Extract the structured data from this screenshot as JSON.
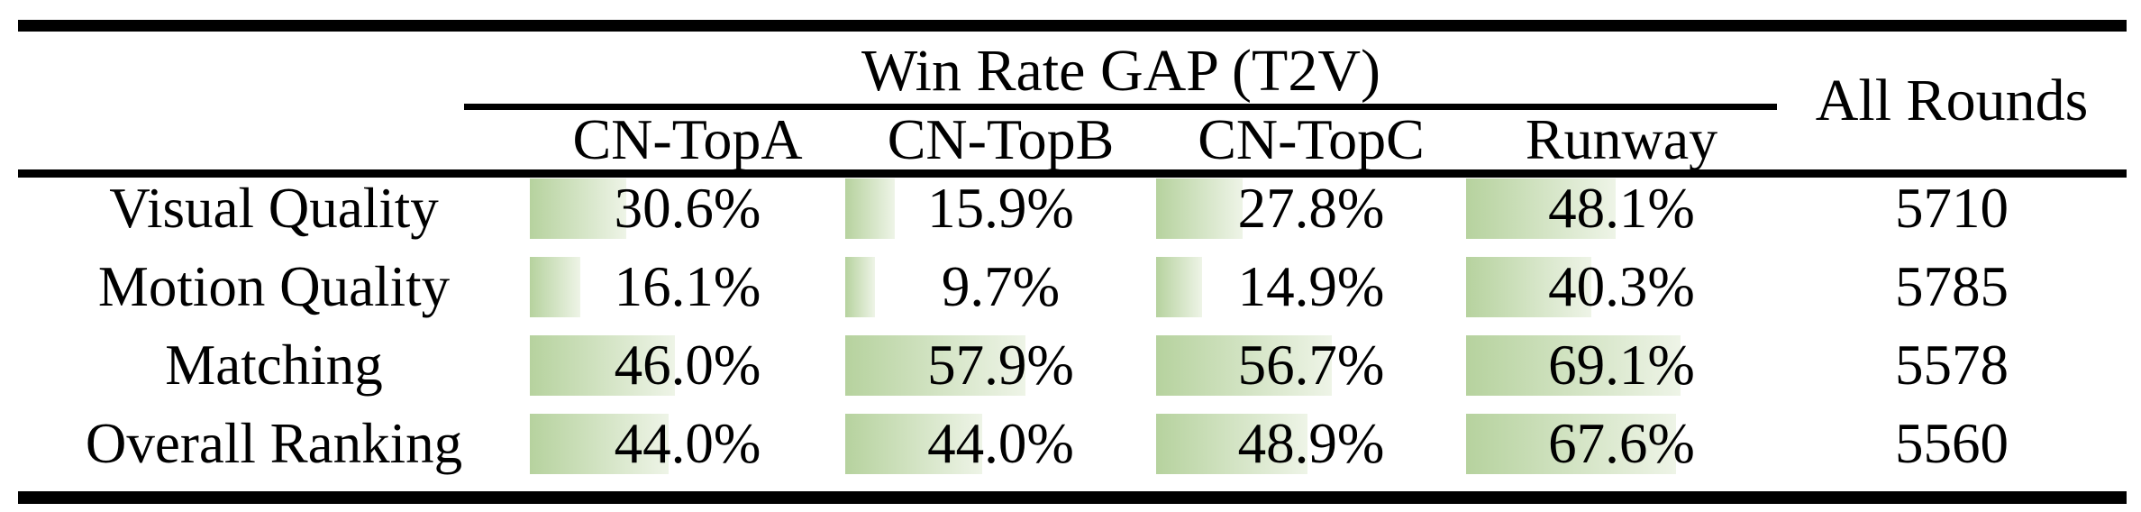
{
  "table": {
    "title": "Win Rate GAP (T2V)",
    "all_rounds_header": "All Rounds",
    "columns": [
      "CN-TopA",
      "CN-TopB",
      "CN-TopC",
      "Runway"
    ],
    "rows": [
      {
        "label": "Visual Quality",
        "values": [
          30.6,
          15.9,
          27.8,
          48.1
        ],
        "display": [
          "30.6%",
          "15.9%",
          "27.8%",
          "48.1%"
        ],
        "all_rounds": "5710"
      },
      {
        "label": "Motion Quality",
        "values": [
          16.1,
          9.7,
          14.9,
          40.3
        ],
        "display": [
          "16.1%",
          "9.7%",
          "14.9%",
          "40.3%"
        ],
        "all_rounds": "5785"
      },
      {
        "label": "Matching",
        "values": [
          46.0,
          57.9,
          56.7,
          69.1
        ],
        "display": [
          "46.0%",
          "57.9%",
          "56.7%",
          "69.1%"
        ],
        "all_rounds": "5578"
      },
      {
        "label": "Overall Ranking",
        "values": [
          44.0,
          44.0,
          48.9,
          67.6
        ],
        "display": [
          "44.0%",
          "44.0%",
          "48.9%",
          "67.6%"
        ],
        "all_rounds": "5560"
      }
    ],
    "bar_color_start": "#b6d29e",
    "bar_color_end": "#eef4e7",
    "rule_color": "#000000"
  },
  "chart_data": {
    "type": "table",
    "title": "Win Rate GAP (T2V)",
    "categories": [
      "CN-TopA",
      "CN-TopB",
      "CN-TopC",
      "Runway",
      "All Rounds"
    ],
    "series": [
      {
        "name": "Visual Quality",
        "values": [
          30.6,
          15.9,
          27.8,
          48.1
        ],
        "all_rounds": 5710
      },
      {
        "name": "Motion Quality",
        "values": [
          16.1,
          9.7,
          14.9,
          40.3
        ],
        "all_rounds": 5785
      },
      {
        "name": "Matching",
        "values": [
          46.0,
          57.9,
          56.7,
          69.1
        ],
        "all_rounds": 5578
      },
      {
        "name": "Overall Ranking",
        "values": [
          44.0,
          44.0,
          48.9,
          67.6
        ],
        "all_rounds": 5560
      }
    ],
    "value_unit": "%",
    "bar_scale": "data bars proportional to percent of cell width, green gradient fading right"
  }
}
